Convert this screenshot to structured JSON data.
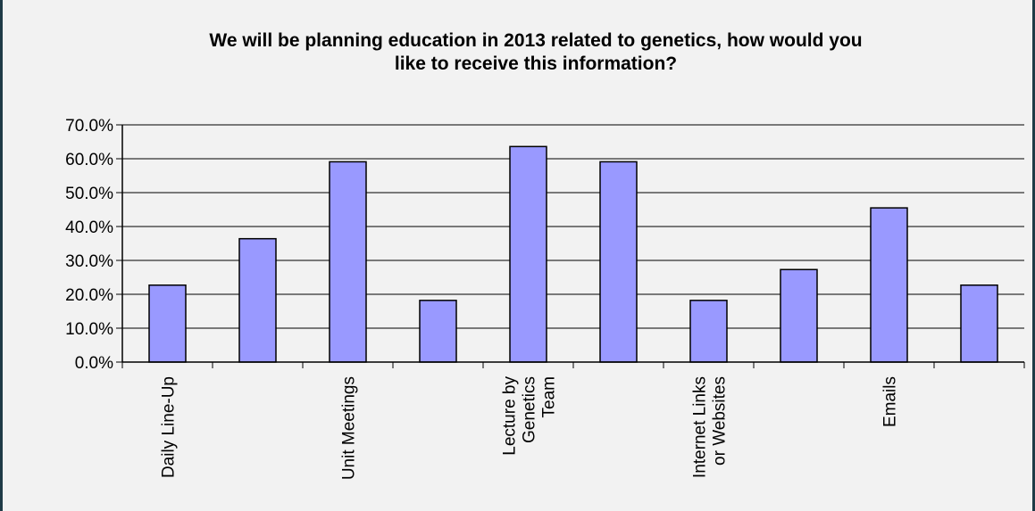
{
  "chart_data": {
    "type": "bar",
    "title_lines": [
      "We will be planning education in 2013 related to genetics, how would you",
      "like to receive this information?"
    ],
    "categories": [
      [
        "Daily Line-Up"
      ],
      [],
      [
        "Unit Meetings"
      ],
      [],
      [
        "Lecture by",
        "Genetics",
        "Team"
      ],
      [],
      [
        "Internet Links",
        "or Websites"
      ],
      [],
      [
        "Emails"
      ],
      []
    ],
    "values": [
      22.7,
      36.4,
      59.1,
      18.2,
      63.6,
      59.1,
      18.2,
      27.3,
      45.5,
      22.7
    ],
    "yticks": [
      "0.0%",
      "10.0%",
      "20.0%",
      "30.0%",
      "40.0%",
      "50.0%",
      "60.0%",
      "70.0%"
    ],
    "ylim": [
      0,
      70
    ],
    "grid": true,
    "bar_color": "#9999ff"
  }
}
